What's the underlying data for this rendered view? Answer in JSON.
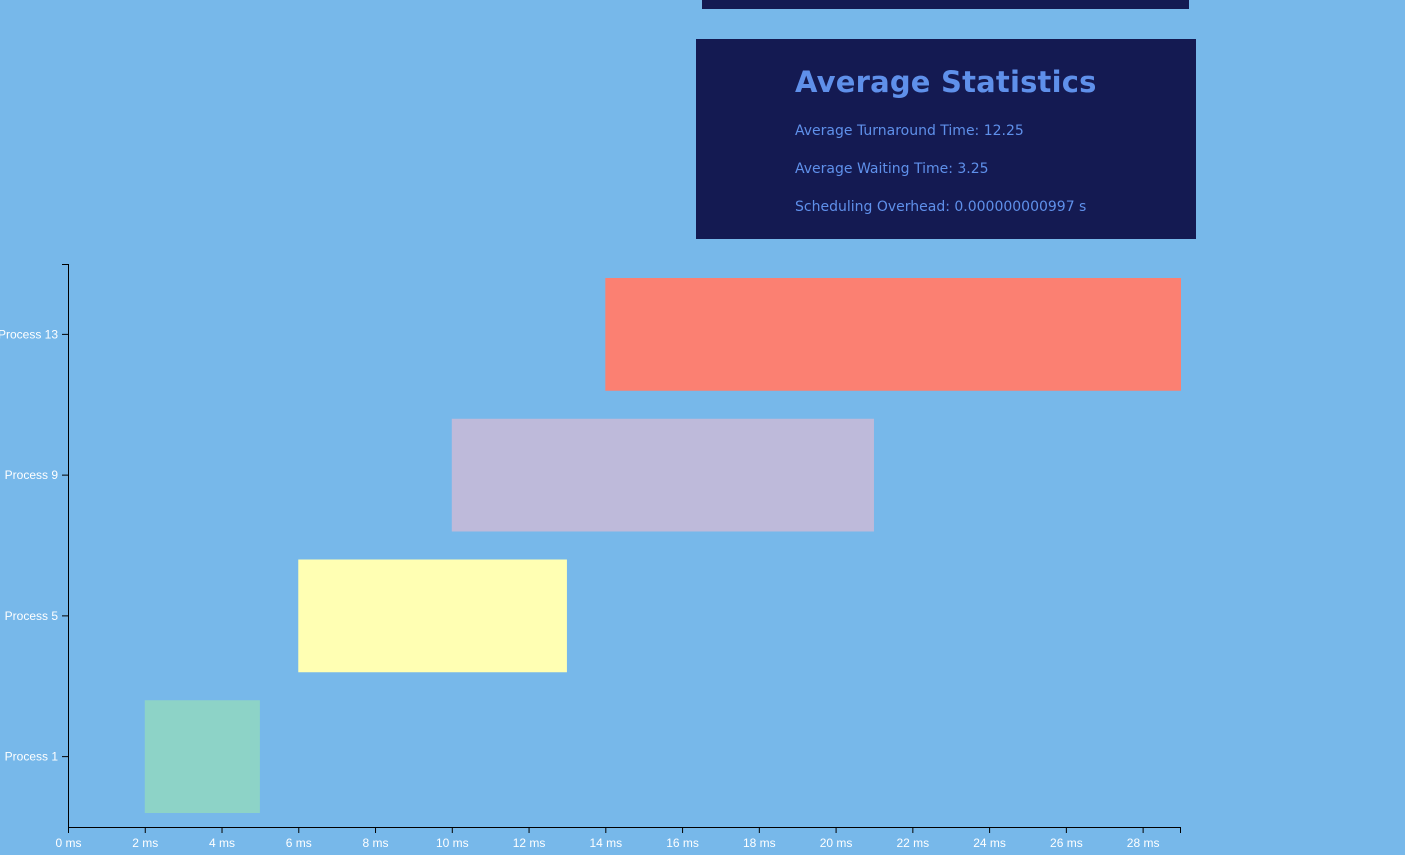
{
  "stats": {
    "title": "Average Statistics",
    "turnaround_label": "Average Turnaround Time: 12.25",
    "waiting_label": "Average Waiting Time: 3.25",
    "overhead_label": "Scheduling Overhead: 0.000000000997 s"
  },
  "colors": {
    "background": "#77b8ea",
    "panel": "#141a52",
    "panel_text": "#5f90ea",
    "axis": "#000000",
    "tick_text": "#ffffff"
  },
  "chart_data": {
    "type": "gantt",
    "x_unit": "ms",
    "xlim": [
      0,
      29
    ],
    "x_ticks": [
      0,
      2,
      4,
      6,
      8,
      10,
      12,
      14,
      16,
      18,
      20,
      22,
      24,
      26,
      28
    ],
    "x_tick_labels": [
      "0 ms",
      "2 ms",
      "4 ms",
      "6 ms",
      "8 ms",
      "10 ms",
      "12 ms",
      "14 ms",
      "16 ms",
      "18 ms",
      "20 ms",
      "22 ms",
      "24 ms",
      "26 ms",
      "28 ms"
    ],
    "categories": [
      "Process 1",
      "Process 5",
      "Process 9",
      "Process 13"
    ],
    "tasks": [
      {
        "process": "Process 1",
        "start": 2,
        "end": 5,
        "color": "#8dd3c7"
      },
      {
        "process": "Process 5",
        "start": 6,
        "end": 13,
        "color": "#ffffb3"
      },
      {
        "process": "Process 9",
        "start": 10,
        "end": 21,
        "color": "#bebada"
      },
      {
        "process": "Process 13",
        "start": 14,
        "end": 29,
        "color": "#fb8072"
      }
    ]
  }
}
